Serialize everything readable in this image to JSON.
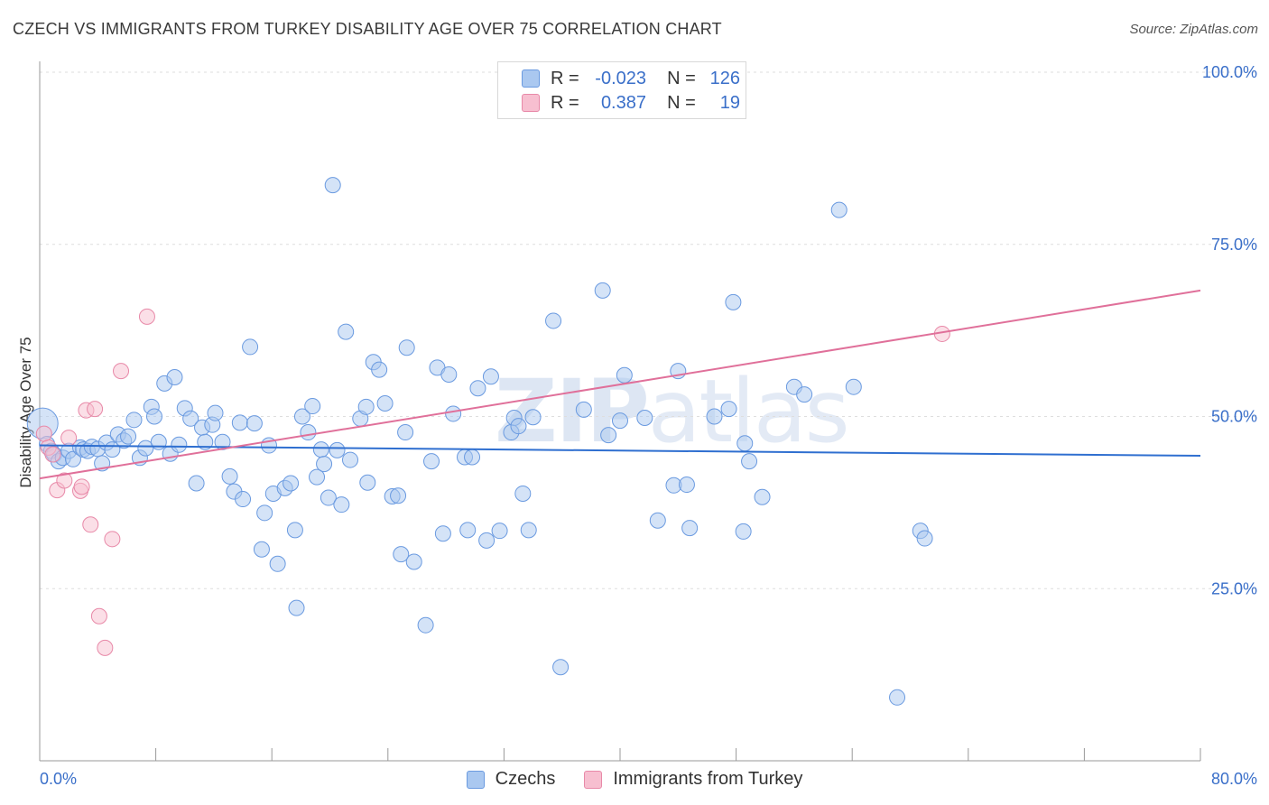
{
  "title": "CZECH VS IMMIGRANTS FROM TURKEY DISABILITY AGE OVER 75 CORRELATION CHART",
  "source": "Source: ZipAtlas.com",
  "watermark": {
    "left": "ZIP",
    "right": "atlas"
  },
  "legend": [
    {
      "r_label": "R =",
      "r_value": "-0.023",
      "n_label": "N =",
      "n_value": "126",
      "color": "#aac8f0",
      "edge": "#6a9ae0"
    },
    {
      "r_label": "R =",
      "r_value": "0.387",
      "n_label": "N =",
      "n_value": "19",
      "color": "#f7bfd0",
      "edge": "#e889a8"
    }
  ],
  "bottom_legend": [
    "Czechs",
    "Immigrants from Turkey"
  ],
  "chart_data": {
    "type": "scatter",
    "xlabel": "",
    "ylabel": "Disability Age Over 75",
    "xlim": [
      0,
      80
    ],
    "ylim": [
      0,
      100
    ],
    "x_tick_labels": [
      "0.0%",
      "80.0%"
    ],
    "y_tick_labels": [
      {
        "v": 25,
        "label": "25.0%"
      },
      {
        "v": 50,
        "label": "50.0%"
      },
      {
        "v": 75,
        "label": "75.0%"
      },
      {
        "v": 100,
        "label": "100.0%"
      }
    ],
    "grid": "horizontal dashed",
    "series": [
      {
        "name": "Czechs",
        "color": "#aac8f0",
        "edge": "#6a9ae0",
        "trend": {
          "x": [
            0,
            80
          ],
          "y": [
            45.8,
            44.3
          ],
          "color": "#2f6fd0"
        },
        "points": [
          [
            0.2,
            49.0
          ],
          [
            0.5,
            46.0
          ],
          [
            0.8,
            45.0
          ],
          [
            1.0,
            44.5
          ],
          [
            1.3,
            43.5
          ],
          [
            1.6,
            44.0
          ],
          [
            2.0,
            45.0
          ],
          [
            2.3,
            43.8
          ],
          [
            2.8,
            45.5
          ],
          [
            3.0,
            45.2
          ],
          [
            3.3,
            45.0
          ],
          [
            3.6,
            45.6
          ],
          [
            4.0,
            45.3
          ],
          [
            4.3,
            43.2
          ],
          [
            4.6,
            46.2
          ],
          [
            5.0,
            45.2
          ],
          [
            5.4,
            47.4
          ],
          [
            5.8,
            46.5
          ],
          [
            6.1,
            47.1
          ],
          [
            6.5,
            49.5
          ],
          [
            6.9,
            44.0
          ],
          [
            7.3,
            45.4
          ],
          [
            7.7,
            51.4
          ],
          [
            7.9,
            50.0
          ],
          [
            8.2,
            46.3
          ],
          [
            8.6,
            54.8
          ],
          [
            9.0,
            44.6
          ],
          [
            9.3,
            55.7
          ],
          [
            9.6,
            45.9
          ],
          [
            10.0,
            51.2
          ],
          [
            10.4,
            49.7
          ],
          [
            10.8,
            40.3
          ],
          [
            11.2,
            48.4
          ],
          [
            11.4,
            46.3
          ],
          [
            11.9,
            48.8
          ],
          [
            12.1,
            50.5
          ],
          [
            12.6,
            46.3
          ],
          [
            13.1,
            41.3
          ],
          [
            13.4,
            39.1
          ],
          [
            13.8,
            49.1
          ],
          [
            14.0,
            38.0
          ],
          [
            14.5,
            60.1
          ],
          [
            14.8,
            49.0
          ],
          [
            15.3,
            30.7
          ],
          [
            15.5,
            36.0
          ],
          [
            15.8,
            45.8
          ],
          [
            16.1,
            38.8
          ],
          [
            16.4,
            28.6
          ],
          [
            16.9,
            39.6
          ],
          [
            17.3,
            40.3
          ],
          [
            17.6,
            33.5
          ],
          [
            17.7,
            22.2
          ],
          [
            18.1,
            50.0
          ],
          [
            18.5,
            47.7
          ],
          [
            18.8,
            51.5
          ],
          [
            19.1,
            41.2
          ],
          [
            19.4,
            45.2
          ],
          [
            19.6,
            43.1
          ],
          [
            19.9,
            38.2
          ],
          [
            20.2,
            83.6
          ],
          [
            20.5,
            45.1
          ],
          [
            20.8,
            37.2
          ],
          [
            21.1,
            62.3
          ],
          [
            21.4,
            43.7
          ],
          [
            22.1,
            49.7
          ],
          [
            22.5,
            51.4
          ],
          [
            22.6,
            40.4
          ],
          [
            23.0,
            57.9
          ],
          [
            23.4,
            56.8
          ],
          [
            23.8,
            51.9
          ],
          [
            24.3,
            38.4
          ],
          [
            24.7,
            38.5
          ],
          [
            24.9,
            30.0
          ],
          [
            25.2,
            47.7
          ],
          [
            25.3,
            60.0
          ],
          [
            25.8,
            28.9
          ],
          [
            26.6,
            19.7
          ],
          [
            27.0,
            43.5
          ],
          [
            27.4,
            57.1
          ],
          [
            27.8,
            33.0
          ],
          [
            28.2,
            56.1
          ],
          [
            28.5,
            50.4
          ],
          [
            29.3,
            44.1
          ],
          [
            29.5,
            33.5
          ],
          [
            29.8,
            44.1
          ],
          [
            30.2,
            54.1
          ],
          [
            30.8,
            32.0
          ],
          [
            31.1,
            55.8
          ],
          [
            31.7,
            33.4
          ],
          [
            32.5,
            47.7
          ],
          [
            32.7,
            49.8
          ],
          [
            33.0,
            48.6
          ],
          [
            33.3,
            38.8
          ],
          [
            33.7,
            33.5
          ],
          [
            34.0,
            49.9
          ],
          [
            35.4,
            63.9
          ],
          [
            35.9,
            13.6
          ],
          [
            37.5,
            51.0
          ],
          [
            38.8,
            68.3
          ],
          [
            39.2,
            47.3
          ],
          [
            40.0,
            49.4
          ],
          [
            40.3,
            56.0
          ],
          [
            41.7,
            49.8
          ],
          [
            42.6,
            34.9
          ],
          [
            43.7,
            40.0
          ],
          [
            44.0,
            56.6
          ],
          [
            44.6,
            40.1
          ],
          [
            44.8,
            33.8
          ],
          [
            46.5,
            50.0
          ],
          [
            47.5,
            51.1
          ],
          [
            47.8,
            66.6
          ],
          [
            48.5,
            33.3
          ],
          [
            48.6,
            46.1
          ],
          [
            48.9,
            43.5
          ],
          [
            49.8,
            38.3
          ],
          [
            52.0,
            54.3
          ],
          [
            52.7,
            53.2
          ],
          [
            55.1,
            80.0
          ],
          [
            56.1,
            54.3
          ],
          [
            59.1,
            9.2
          ],
          [
            60.7,
            33.4
          ],
          [
            61.0,
            32.3
          ]
        ]
      },
      {
        "name": "Immigrants from Turkey",
        "color": "#f7bfd0",
        "edge": "#e889a8",
        "trend": {
          "x": [
            0,
            80
          ],
          "y": [
            41.0,
            68.3
          ],
          "color": "#e0709a"
        },
        "points": [
          [
            0.3,
            47.5
          ],
          [
            0.6,
            45.5
          ],
          [
            0.9,
            44.5
          ],
          [
            1.2,
            39.3
          ],
          [
            1.7,
            40.7
          ],
          [
            2.0,
            46.9
          ],
          [
            2.8,
            39.2
          ],
          [
            2.9,
            39.8
          ],
          [
            3.2,
            50.9
          ],
          [
            3.5,
            34.3
          ],
          [
            3.8,
            51.1
          ],
          [
            4.1,
            21.0
          ],
          [
            4.5,
            16.4
          ],
          [
            5.0,
            32.2
          ],
          [
            5.6,
            56.6
          ],
          [
            7.4,
            64.5
          ],
          [
            62.2,
            62.0
          ]
        ]
      }
    ]
  }
}
